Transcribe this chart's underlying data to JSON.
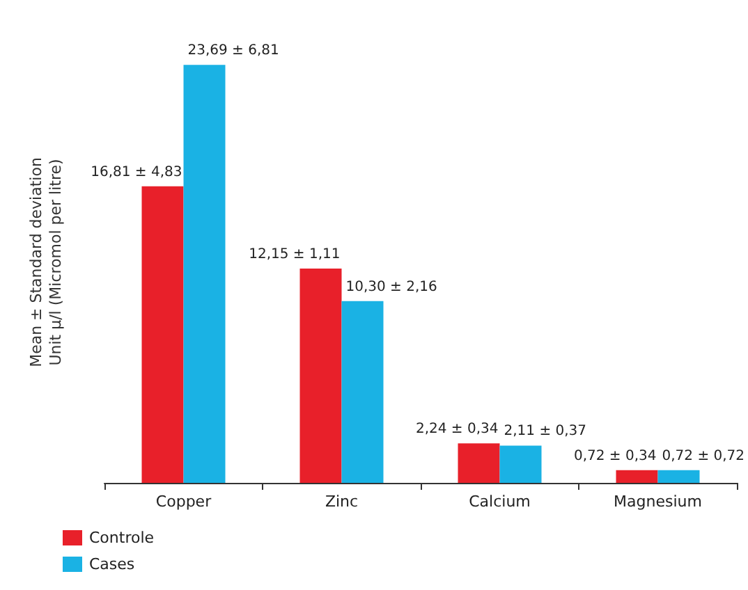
{
  "chart_data": {
    "type": "bar",
    "ylabel": "Mean ± Standard deviation\nUnit µ/l (Micromol per litre)",
    "categories": [
      "Copper",
      "Zinc",
      "Calcium",
      "Magnesium"
    ],
    "series": [
      {
        "name": "Controle",
        "color": "#e8202a",
        "values": [
          16.81,
          12.15,
          2.24,
          0.72
        ],
        "value_labels": [
          "16,81 ± 4,83",
          "12,15 ± 1,11",
          "2,24 ± 0,34",
          "0,72 ± 0,34"
        ]
      },
      {
        "name": "Cases",
        "color": "#1ab2e4",
        "values": [
          23.69,
          10.3,
          2.11,
          0.72
        ],
        "value_labels": [
          "23,69 ± 6,81",
          "10,30 ± 2,16",
          "2,11 ± 0,37",
          "0,72 ± 0,72"
        ]
      }
    ],
    "legend": "bottom left",
    "grid": false
  }
}
